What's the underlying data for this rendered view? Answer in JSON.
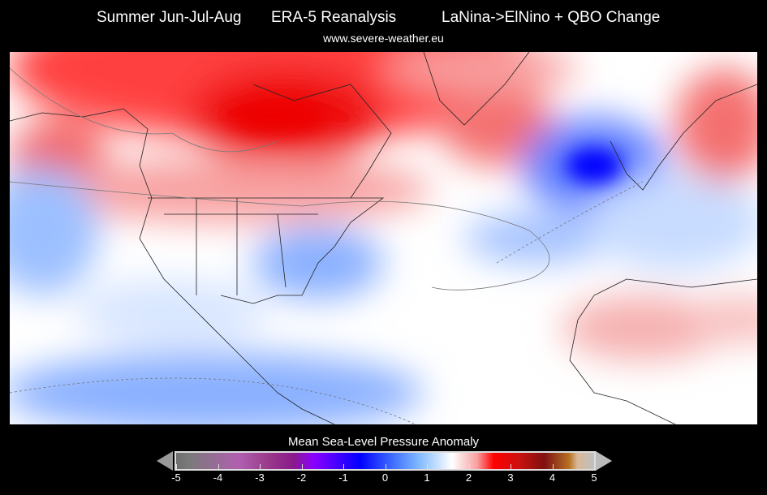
{
  "header": {
    "season": "Summer Jun-Jul-Aug",
    "dataset": "ERA-5 Reanalysis",
    "scenario": "LaNina->ElNino + QBO Change",
    "website": "www.severe-weather.eu"
  },
  "colorbar": {
    "title": "Mean Sea-Level Pressure Anomaly",
    "ticks": [
      "-5",
      "-4",
      "-3",
      "-2",
      "-1",
      "0",
      "1",
      "2",
      "3",
      "4",
      "5"
    ],
    "min": -5,
    "max": 5
  },
  "colors": {
    "positive": "#ff0000",
    "negative": "#0000ff",
    "neutral": "#ffffff"
  }
}
